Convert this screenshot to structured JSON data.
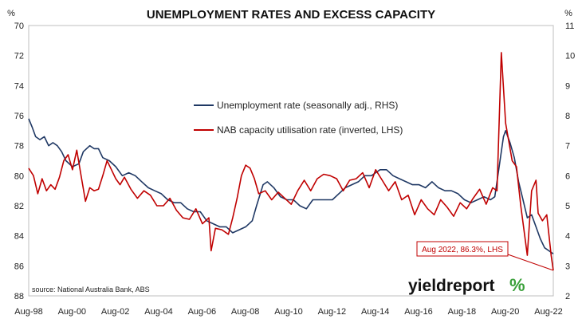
{
  "chart_data": {
    "type": "line",
    "title": "UNEMPLOYMENT RATES AND EXCESS CAPACITY",
    "left_unit": "%",
    "right_unit": "%",
    "x_ticks": [
      "Aug-98",
      "Aug-00",
      "Aug-02",
      "Aug-04",
      "Aug-06",
      "Aug-08",
      "Aug-10",
      "Aug-12",
      "Aug-14",
      "Aug-16",
      "Aug-18",
      "Aug-20",
      "Aug-22"
    ],
    "x_range": [
      1998.58,
      2022.8
    ],
    "left_axis": {
      "ticks": [
        "70",
        "72",
        "74",
        "76",
        "78",
        "80",
        "82",
        "84",
        "86",
        "88"
      ],
      "min": 70,
      "max": 88,
      "inverted": true
    },
    "right_axis": {
      "ticks": [
        "11",
        "10",
        "9",
        "8",
        "7",
        "6",
        "5",
        "4",
        "3",
        "2"
      ],
      "min": 2,
      "max": 11
    },
    "grid": false,
    "legend_position": "upper-middle",
    "series": [
      {
        "name": "Unemployment rate (seasonally adj., RHS)",
        "axis": "right",
        "color": "#1f3864",
        "points": [
          [
            1998.58,
            7.9
          ],
          [
            1998.75,
            7.6
          ],
          [
            1998.9,
            7.3
          ],
          [
            1999.1,
            7.2
          ],
          [
            1999.3,
            7.3
          ],
          [
            1999.5,
            7.0
          ],
          [
            1999.7,
            7.1
          ],
          [
            1999.9,
            7.0
          ],
          [
            2000.1,
            6.8
          ],
          [
            2000.3,
            6.5
          ],
          [
            2000.6,
            6.3
          ],
          [
            2000.9,
            6.4
          ],
          [
            2001.1,
            6.8
          ],
          [
            2001.4,
            7.0
          ],
          [
            2001.6,
            6.9
          ],
          [
            2001.8,
            6.9
          ],
          [
            2002.0,
            6.6
          ],
          [
            2002.3,
            6.5
          ],
          [
            2002.6,
            6.3
          ],
          [
            2002.9,
            6.0
          ],
          [
            2003.2,
            6.1
          ],
          [
            2003.5,
            6.0
          ],
          [
            2003.8,
            5.8
          ],
          [
            2004.1,
            5.6
          ],
          [
            2004.4,
            5.5
          ],
          [
            2004.7,
            5.4
          ],
          [
            2005.0,
            5.2
          ],
          [
            2005.3,
            5.1
          ],
          [
            2005.6,
            5.1
          ],
          [
            2005.9,
            4.9
          ],
          [
            2006.2,
            4.8
          ],
          [
            2006.5,
            4.8
          ],
          [
            2006.8,
            4.5
          ],
          [
            2007.1,
            4.4
          ],
          [
            2007.4,
            4.3
          ],
          [
            2007.7,
            4.3
          ],
          [
            2008.0,
            4.1
          ],
          [
            2008.3,
            4.2
          ],
          [
            2008.6,
            4.3
          ],
          [
            2008.9,
            4.5
          ],
          [
            2009.1,
            5.0
          ],
          [
            2009.4,
            5.7
          ],
          [
            2009.6,
            5.8
          ],
          [
            2009.9,
            5.6
          ],
          [
            2010.2,
            5.3
          ],
          [
            2010.5,
            5.2
          ],
          [
            2010.8,
            5.2
          ],
          [
            2011.1,
            5.0
          ],
          [
            2011.4,
            4.9
          ],
          [
            2011.7,
            5.2
          ],
          [
            2012.0,
            5.2
          ],
          [
            2012.3,
            5.2
          ],
          [
            2012.6,
            5.2
          ],
          [
            2012.9,
            5.4
          ],
          [
            2013.2,
            5.6
          ],
          [
            2013.5,
            5.7
          ],
          [
            2013.8,
            5.8
          ],
          [
            2014.1,
            6.0
          ],
          [
            2014.4,
            6.0
          ],
          [
            2014.6,
            6.1
          ],
          [
            2014.8,
            6.2
          ],
          [
            2015.1,
            6.2
          ],
          [
            2015.4,
            6.0
          ],
          [
            2015.7,
            5.9
          ],
          [
            2016.0,
            5.8
          ],
          [
            2016.3,
            5.7
          ],
          [
            2016.6,
            5.7
          ],
          [
            2016.9,
            5.6
          ],
          [
            2017.2,
            5.8
          ],
          [
            2017.5,
            5.6
          ],
          [
            2017.8,
            5.5
          ],
          [
            2018.1,
            5.5
          ],
          [
            2018.4,
            5.4
          ],
          [
            2018.7,
            5.2
          ],
          [
            2019.0,
            5.1
          ],
          [
            2019.3,
            5.2
          ],
          [
            2019.6,
            5.3
          ],
          [
            2019.9,
            5.2
          ],
          [
            2020.1,
            5.3
          ],
          [
            2020.3,
            6.3
          ],
          [
            2020.5,
            7.3
          ],
          [
            2020.6,
            7.5
          ],
          [
            2020.8,
            7.1
          ],
          [
            2021.0,
            6.6
          ],
          [
            2021.2,
            5.8
          ],
          [
            2021.4,
            5.2
          ],
          [
            2021.6,
            4.6
          ],
          [
            2021.8,
            4.7
          ],
          [
            2022.0,
            4.3
          ],
          [
            2022.2,
            3.9
          ],
          [
            2022.4,
            3.6
          ],
          [
            2022.6,
            3.5
          ],
          [
            2022.8,
            3.4
          ]
        ]
      },
      {
        "name": "NAB capacity utilisation rate (inverted, LHS)",
        "axis": "left",
        "color": "#c00000",
        "points": [
          [
            1998.58,
            79.5
          ],
          [
            1998.8,
            80.0
          ],
          [
            1999.0,
            81.2
          ],
          [
            1999.2,
            80.2
          ],
          [
            1999.4,
            81.0
          ],
          [
            1999.6,
            80.6
          ],
          [
            1999.8,
            80.9
          ],
          [
            2000.0,
            80.1
          ],
          [
            2000.2,
            79.0
          ],
          [
            2000.4,
            78.6
          ],
          [
            2000.6,
            79.6
          ],
          [
            2000.8,
            78.3
          ],
          [
            2001.0,
            80.0
          ],
          [
            2001.2,
            81.7
          ],
          [
            2001.4,
            80.8
          ],
          [
            2001.6,
            81.0
          ],
          [
            2001.8,
            80.9
          ],
          [
            2002.0,
            80.0
          ],
          [
            2002.2,
            79.0
          ],
          [
            2002.4,
            79.6
          ],
          [
            2002.6,
            80.2
          ],
          [
            2002.8,
            80.6
          ],
          [
            2003.0,
            80.1
          ],
          [
            2003.3,
            80.9
          ],
          [
            2003.6,
            81.5
          ],
          [
            2003.9,
            81.0
          ],
          [
            2004.2,
            81.3
          ],
          [
            2004.5,
            82.0
          ],
          [
            2004.8,
            82.0
          ],
          [
            2005.1,
            81.5
          ],
          [
            2005.4,
            82.3
          ],
          [
            2005.7,
            82.8
          ],
          [
            2006.0,
            82.9
          ],
          [
            2006.3,
            82.2
          ],
          [
            2006.6,
            83.2
          ],
          [
            2006.9,
            82.8
          ],
          [
            2007.0,
            85.0
          ],
          [
            2007.2,
            83.5
          ],
          [
            2007.5,
            83.6
          ],
          [
            2007.8,
            83.9
          ],
          [
            2008.0,
            82.8
          ],
          [
            2008.2,
            81.5
          ],
          [
            2008.4,
            80.0
          ],
          [
            2008.6,
            79.3
          ],
          [
            2008.8,
            79.5
          ],
          [
            2009.0,
            80.2
          ],
          [
            2009.2,
            81.2
          ],
          [
            2009.5,
            81.0
          ],
          [
            2009.8,
            81.6
          ],
          [
            2010.1,
            81.1
          ],
          [
            2010.4,
            81.5
          ],
          [
            2010.7,
            81.9
          ],
          [
            2011.0,
            81.0
          ],
          [
            2011.3,
            80.3
          ],
          [
            2011.6,
            81.0
          ],
          [
            2011.9,
            80.2
          ],
          [
            2012.2,
            79.9
          ],
          [
            2012.5,
            80.0
          ],
          [
            2012.8,
            80.2
          ],
          [
            2013.1,
            81.0
          ],
          [
            2013.4,
            80.3
          ],
          [
            2013.7,
            80.2
          ],
          [
            2014.0,
            79.8
          ],
          [
            2014.3,
            80.8
          ],
          [
            2014.6,
            79.6
          ],
          [
            2014.9,
            80.3
          ],
          [
            2015.2,
            81.0
          ],
          [
            2015.5,
            80.4
          ],
          [
            2015.8,
            81.6
          ],
          [
            2016.1,
            81.3
          ],
          [
            2016.4,
            82.6
          ],
          [
            2016.7,
            81.6
          ],
          [
            2017.0,
            82.2
          ],
          [
            2017.3,
            82.6
          ],
          [
            2017.6,
            81.6
          ],
          [
            2017.9,
            82.1
          ],
          [
            2018.2,
            82.7
          ],
          [
            2018.5,
            81.8
          ],
          [
            2018.8,
            82.2
          ],
          [
            2019.1,
            81.5
          ],
          [
            2019.4,
            80.9
          ],
          [
            2019.7,
            81.9
          ],
          [
            2020.0,
            80.8
          ],
          [
            2020.2,
            81.0
          ],
          [
            2020.4,
            71.8
          ],
          [
            2020.6,
            76.5
          ],
          [
            2020.9,
            79.0
          ],
          [
            2021.1,
            79.4
          ],
          [
            2021.3,
            82.0
          ],
          [
            2021.6,
            85.3
          ],
          [
            2021.8,
            81.0
          ],
          [
            2022.0,
            80.3
          ],
          [
            2022.1,
            82.5
          ],
          [
            2022.3,
            83.0
          ],
          [
            2022.5,
            82.6
          ],
          [
            2022.7,
            85.3
          ],
          [
            2022.8,
            86.3
          ]
        ]
      }
    ],
    "annotation": {
      "text": "Aug 2022, 86.3%, LHS",
      "x": 2022.8,
      "y": 86.3,
      "axis": "left"
    },
    "source_note": "source: National Australia Bank, ABS",
    "watermark": {
      "word": "yieldreport",
      "symbol": "%"
    }
  }
}
